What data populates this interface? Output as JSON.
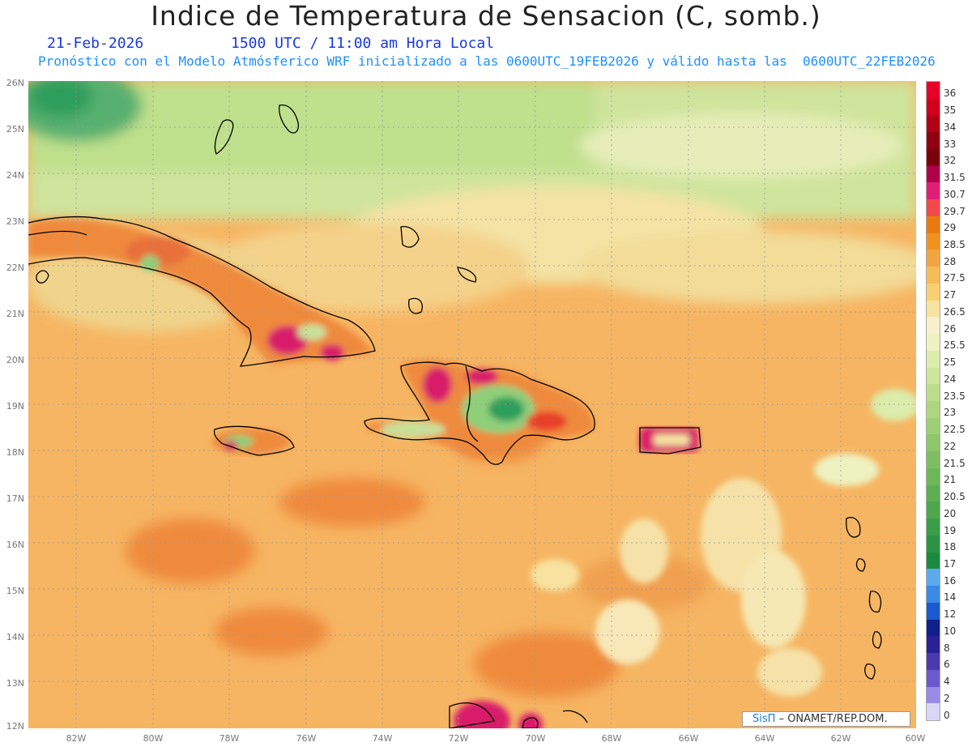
{
  "title": "Indice de Temperatura de Sensacion (C, somb.)",
  "date_label": "21-Feb-2026",
  "time_label": "1500 UTC / 11:00 am Hora Local",
  "forecast_label": "Pronóstico con el Modelo Atmósferico WRF inicializado a las 0600UTC_19FEB2026 y válido hasta las  0600UTC_22FEB2026",
  "credit": {
    "brand": "SisΠ",
    "separator": " – ",
    "org": "ONAMET/REP.DOM."
  },
  "map": {
    "lat_labels": [
      "26N",
      "25N",
      "24N",
      "23N",
      "22N",
      "21N",
      "20N",
      "19N",
      "18N",
      "17N",
      "16N",
      "15N",
      "14N",
      "13N",
      "12N"
    ],
    "lon_labels": [
      "82W",
      "80W",
      "78W",
      "76W",
      "74W",
      "72W",
      "70W",
      "68W",
      "66W",
      "64W",
      "62W",
      "60W"
    ],
    "lat_range": [
      12,
      26
    ],
    "lon_range": [
      -83.2,
      -60
    ],
    "grid": true,
    "colors": {
      "ocean_base": "#f6b562",
      "warm": "#ef8a3c",
      "hot": "#e8402a",
      "very_hot": "#d81b6b",
      "cool_band": "#c9e09a",
      "cooler": "#8fcf7a",
      "coolest": "#2f9e5b",
      "coastline": "#000000"
    },
    "regions": [
      {
        "name": "Cuba",
        "type": "land"
      },
      {
        "name": "La Española",
        "type": "land"
      },
      {
        "name": "Jamaica",
        "type": "land"
      },
      {
        "name": "Puerto Rico",
        "type": "land"
      },
      {
        "name": "Bahamas",
        "type": "land"
      },
      {
        "name": "Antillas Menores",
        "type": "land"
      }
    ]
  },
  "colorbar": {
    "labels": [
      "36",
      "35",
      "34",
      "33",
      "32",
      "31.5",
      "30.7",
      "29.7",
      "29",
      "28.5",
      "28",
      "27.5",
      "27",
      "26.5",
      "26",
      "25.5",
      "25",
      "24",
      "23.5",
      "23",
      "22.5",
      "22",
      "21.5",
      "21",
      "20.5",
      "20",
      "19",
      "18",
      "17",
      "16",
      "14",
      "12",
      "10",
      "8",
      "6",
      "4",
      "2",
      "0"
    ],
    "colors": [
      "#e8002a",
      "#d0001e",
      "#b20016",
      "#900010",
      "#7a000e",
      "#b0004a",
      "#e01e78",
      "#f24a4a",
      "#e87a10",
      "#f0921e",
      "#f2a440",
      "#f6bc58",
      "#f8d070",
      "#f8e2a0",
      "#f6f0cc",
      "#eef2c0",
      "#dcecaa",
      "#cce69a",
      "#bcde8c",
      "#aed67e",
      "#9ecf74",
      "#8ec66a",
      "#7ebe62",
      "#6eb65a",
      "#5eae54",
      "#4ea64e",
      "#3a9e48",
      "#2a9444",
      "#1a8a40",
      "#5aaaf0",
      "#3a8ae8",
      "#1a5ad0",
      "#10208a",
      "#2a2098",
      "#4a3ab0",
      "#6a5ad0",
      "#9a8ae8",
      "#d8d6f4"
    ]
  }
}
